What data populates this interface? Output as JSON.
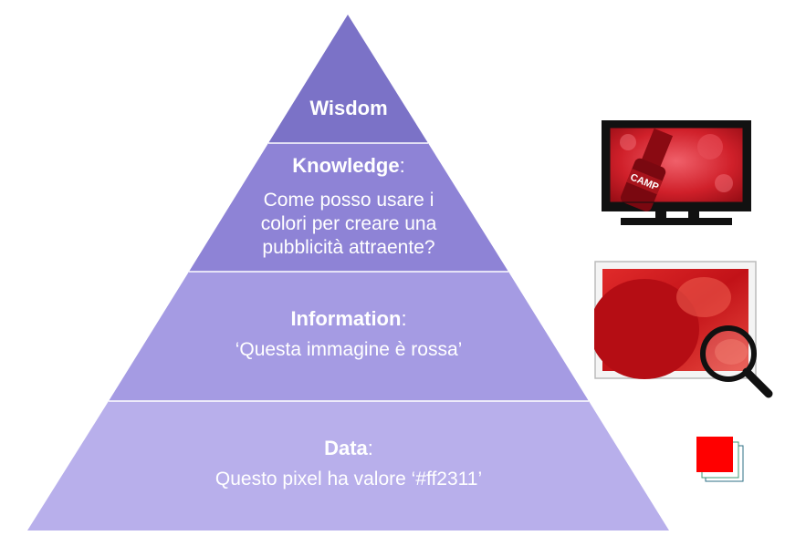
{
  "pyramid": {
    "levels": [
      {
        "name": "Wisdom",
        "sep": "",
        "body": "",
        "color": "#7b72c7"
      },
      {
        "name": "Knowledge",
        "sep": ":",
        "body": "Come posso usare i colori per creare una pubblicità attraente?",
        "color": "#8e83d6"
      },
      {
        "name": "Information",
        "sep": ":",
        "body": "‘Questa immagine è rossa’",
        "color": "#a59be3"
      },
      {
        "name": "Data",
        "sep": ":",
        "body": "Questo pixel ha valore ‘#ff2311’",
        "color": "#b8afeb"
      }
    ]
  },
  "icons": {
    "tv": "tv-icon",
    "photo": "photo-frame-icon",
    "magnifier": "magnifier-icon",
    "pixel": "pixel-square-icon"
  },
  "colors": {
    "pixel_red": "#ff0000",
    "tv_frame": "#111111",
    "product_red": "#c8141e"
  }
}
